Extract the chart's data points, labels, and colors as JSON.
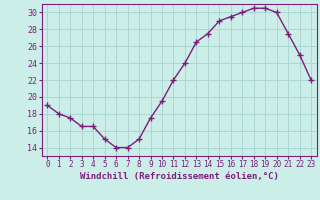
{
  "x": [
    0,
    1,
    2,
    3,
    4,
    5,
    6,
    7,
    8,
    9,
    10,
    11,
    12,
    13,
    14,
    15,
    16,
    17,
    18,
    19,
    20,
    21,
    22,
    23
  ],
  "y": [
    19,
    18,
    17.5,
    16.5,
    16.5,
    15,
    14,
    14,
    15,
    17.5,
    19.5,
    22,
    24,
    26.5,
    27.5,
    29,
    29.5,
    30,
    30.5,
    30.5,
    30,
    27.5,
    25,
    22
  ],
  "line_color": "#7B1F7B",
  "marker": "+",
  "marker_size": 4,
  "xlabel": "Windchill (Refroidissement éolien,°C)",
  "xlim": [
    -0.5,
    23.5
  ],
  "ylim": [
    13.0,
    31.0
  ],
  "yticks": [
    14,
    16,
    18,
    20,
    22,
    24,
    26,
    28,
    30
  ],
  "xticks": [
    0,
    1,
    2,
    3,
    4,
    5,
    6,
    7,
    8,
    9,
    10,
    11,
    12,
    13,
    14,
    15,
    16,
    17,
    18,
    19,
    20,
    21,
    22,
    23
  ],
  "bg_color": "#cceee8",
  "grid_color": "#aad8d4",
  "tick_color": "#7B1F7B",
  "label_color": "#7B1F7B",
  "font_family": "monospace",
  "tick_fontsize": 5.5,
  "label_fontsize": 6.5
}
